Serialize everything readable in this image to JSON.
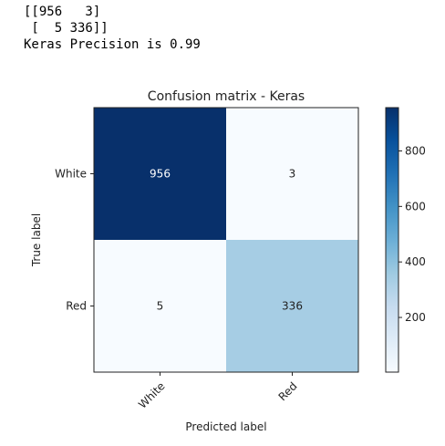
{
  "output": {
    "lines": [
      "[[956   3]",
      " [  5 336]]",
      "Keras Precision is 0.99"
    ]
  },
  "chart_data": {
    "type": "heatmap",
    "title": "Confusion matrix - Keras",
    "xlabel": "Predicted label",
    "ylabel": "True label",
    "x_categories": [
      "White",
      "Red"
    ],
    "y_categories": [
      "White",
      "Red"
    ],
    "values": [
      [
        956,
        3
      ],
      [
        5,
        336
      ]
    ],
    "colormap": "Blues",
    "colorbar": {
      "min": 3,
      "max": 956,
      "ticks": [
        200,
        400,
        600,
        800
      ]
    },
    "colors": {
      "low": "#f7fbff",
      "high": "#08306b",
      "text_dark": "#222222",
      "text_light": "#ffffff"
    },
    "grid": false,
    "x_tick_rotation": -45
  }
}
